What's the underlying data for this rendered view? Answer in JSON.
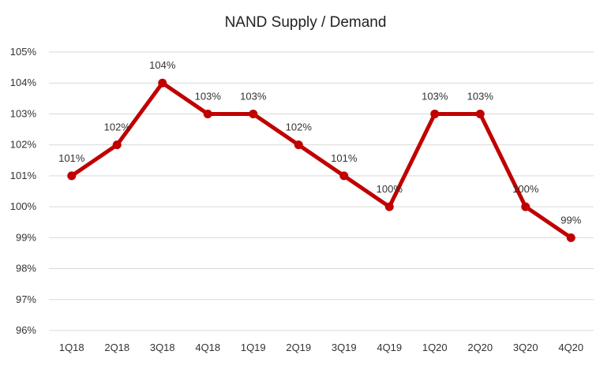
{
  "chart_data": {
    "type": "line",
    "title": "NAND Supply / Demand",
    "xlabel": "",
    "ylabel": "",
    "categories": [
      "1Q18",
      "2Q18",
      "3Q18",
      "4Q18",
      "1Q19",
      "2Q19",
      "3Q19",
      "4Q19",
      "1Q20",
      "2Q20",
      "3Q20",
      "4Q20"
    ],
    "series": [
      {
        "values": [
          101,
          102,
          104,
          103,
          103,
          102,
          101,
          100,
          103,
          103,
          100,
          99
        ],
        "color": "#c00000"
      }
    ],
    "data_labels": [
      "101%",
      "102%",
      "104%",
      "103%",
      "103%",
      "102%",
      "101%",
      "100%",
      "103%",
      "103%",
      "100%",
      "99%"
    ],
    "yticks": [
      96,
      97,
      98,
      99,
      100,
      101,
      102,
      103,
      104,
      105
    ],
    "ytick_labels": [
      "96%",
      "97%",
      "98%",
      "99%",
      "100%",
      "101%",
      "102%",
      "103%",
      "104%",
      "105%"
    ],
    "ylim": [
      96,
      105
    ],
    "grid": true,
    "legend": "none"
  }
}
